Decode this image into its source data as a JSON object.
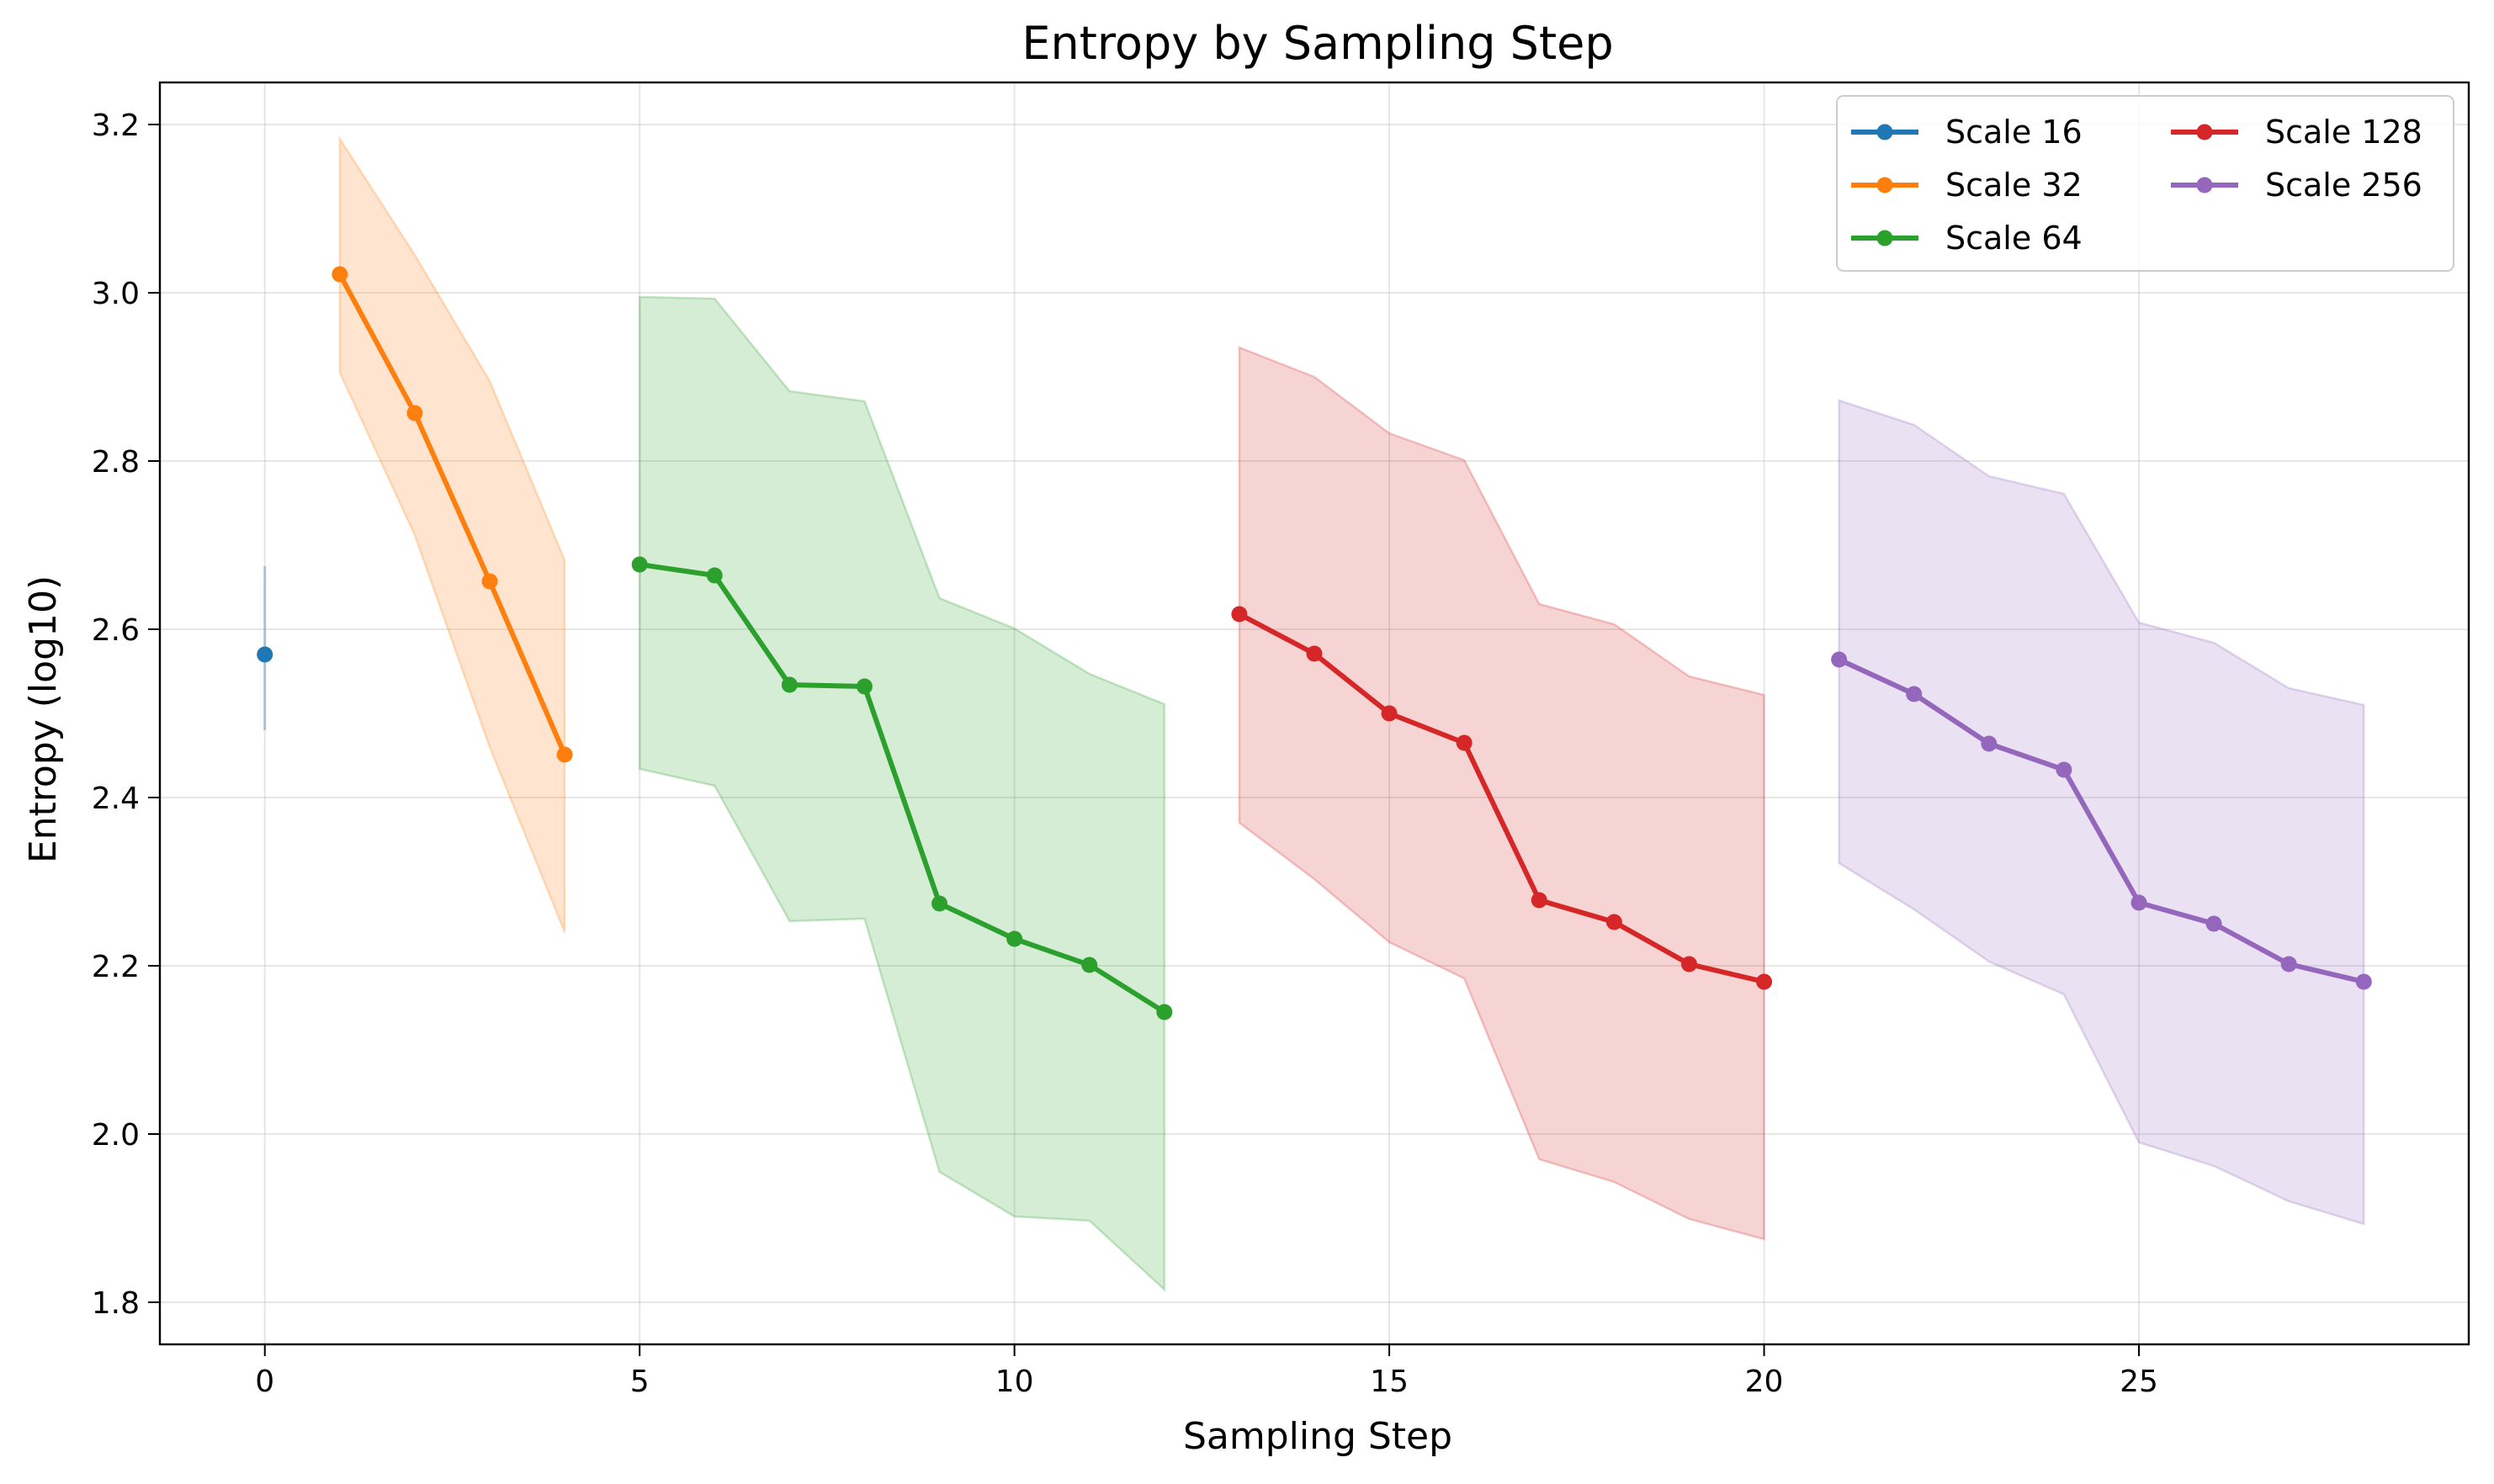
{
  "chart_data": {
    "type": "line",
    "title": "Entropy by Sampling Step",
    "xlabel": "Sampling Step",
    "ylabel": "Entropy (log10)",
    "xlim": [
      -1.4,
      29.4
    ],
    "ylim": [
      1.75,
      3.25
    ],
    "xticks": [
      0,
      5,
      10,
      15,
      20,
      25
    ],
    "yticks": [
      1.8,
      2.0,
      2.2,
      2.4,
      2.6,
      2.8,
      3.0,
      3.2
    ],
    "grid": true,
    "legend_position": "top-right",
    "legend_columns": 2,
    "series": [
      {
        "name": "Scale 16",
        "color": "#1f77b4",
        "x": [
          0
        ],
        "y": [
          2.57
        ],
        "lower": [
          2.48
        ],
        "upper": [
          2.675
        ]
      },
      {
        "name": "Scale 32",
        "color": "#ff7f0e",
        "x": [
          1,
          2,
          3,
          4
        ],
        "y": [
          3.022,
          2.857,
          2.657,
          2.451
        ],
        "lower": [
          2.905,
          2.712,
          2.46,
          2.24
        ],
        "upper": [
          3.183,
          3.045,
          2.895,
          2.682
        ]
      },
      {
        "name": "Scale 64",
        "color": "#2ca02c",
        "x": [
          5,
          6,
          7,
          8,
          9,
          10,
          11,
          12
        ],
        "y": [
          2.677,
          2.664,
          2.534,
          2.532,
          2.274,
          2.232,
          2.201,
          2.145
        ],
        "lower": [
          2.434,
          2.414,
          2.253,
          2.256,
          1.955,
          1.902,
          1.897,
          1.815
        ],
        "upper": [
          2.995,
          2.993,
          2.883,
          2.871,
          2.637,
          2.601,
          2.547,
          2.511
        ]
      },
      {
        "name": "Scale 128",
        "color": "#d62728",
        "x": [
          13,
          14,
          15,
          16,
          17,
          18,
          19,
          20
        ],
        "y": [
          2.618,
          2.571,
          2.5,
          2.465,
          2.278,
          2.252,
          2.202,
          2.181
        ],
        "lower": [
          2.37,
          2.303,
          2.228,
          2.185,
          1.97,
          1.943,
          1.899,
          1.875
        ],
        "upper": [
          2.935,
          2.9,
          2.833,
          2.801,
          2.63,
          2.606,
          2.544,
          2.522
        ]
      },
      {
        "name": "Scale 256",
        "color": "#9467bd",
        "x": [
          21,
          22,
          23,
          24,
          25,
          26,
          27,
          28
        ],
        "y": [
          2.564,
          2.523,
          2.464,
          2.433,
          2.275,
          2.25,
          2.202,
          2.181
        ],
        "lower": [
          2.322,
          2.267,
          2.205,
          2.166,
          1.99,
          1.962,
          1.92,
          1.893
        ],
        "upper": [
          2.872,
          2.843,
          2.782,
          2.761,
          2.608,
          2.584,
          2.53,
          2.51
        ]
      }
    ]
  }
}
